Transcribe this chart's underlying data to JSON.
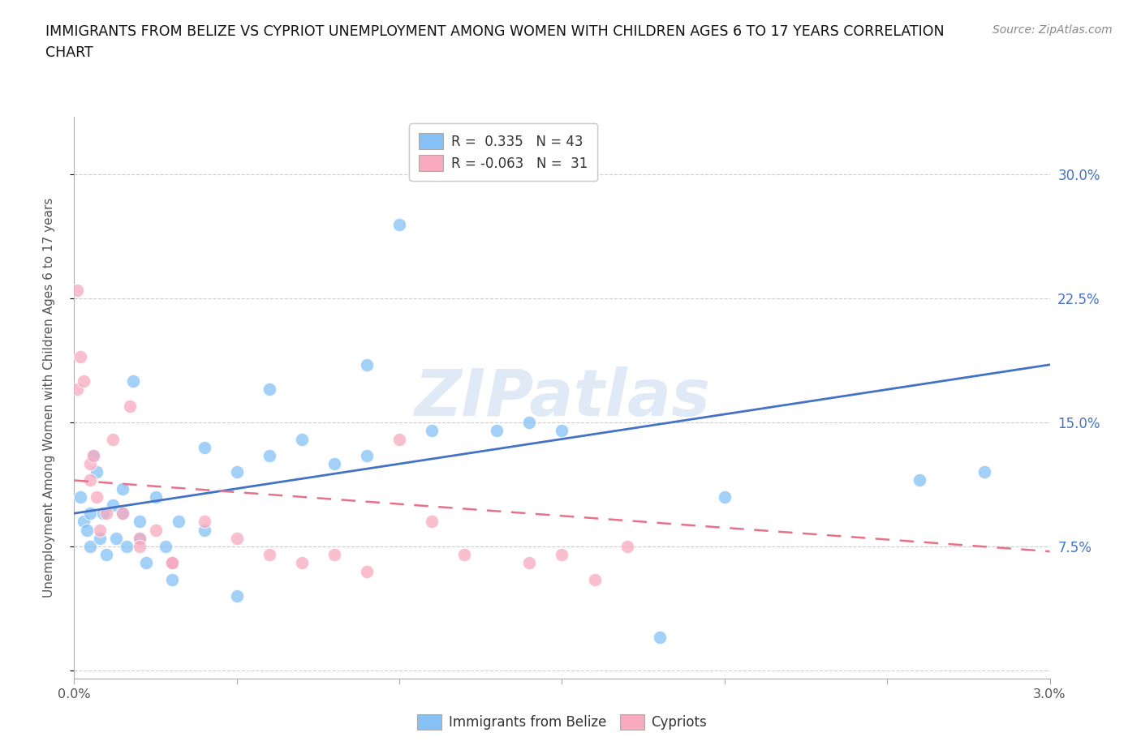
{
  "title_line1": "IMMIGRANTS FROM BELIZE VS CYPRIOT UNEMPLOYMENT AMONG WOMEN WITH CHILDREN AGES 6 TO 17 YEARS CORRELATION",
  "title_line2": "CHART",
  "source": "Source: ZipAtlas.com",
  "ylabel": "Unemployment Among Women with Children Ages 6 to 17 years",
  "xlim": [
    0.0,
    0.03
  ],
  "ylim": [
    -0.005,
    0.335
  ],
  "xticks": [
    0.0,
    0.005,
    0.01,
    0.015,
    0.02,
    0.025,
    0.03
  ],
  "xtick_labels_outer": [
    "0.0%",
    "",
    "",
    "",
    "",
    "",
    "3.0%"
  ],
  "yticks": [
    0.0,
    0.075,
    0.15,
    0.225,
    0.3
  ],
  "ytick_labels_right": [
    "",
    "7.5%",
    "15.0%",
    "22.5%",
    "30.0%"
  ],
  "belize_color": "#85C1F5",
  "cypriot_color": "#F9AABF",
  "belize_line_color": "#4472C4",
  "cypriot_line_color": "#E8718A",
  "watermark": "ZIPatlas",
  "belize_scatter_x": [
    0.0002,
    0.0003,
    0.0004,
    0.0005,
    0.0005,
    0.0006,
    0.0007,
    0.0008,
    0.0009,
    0.001,
    0.0012,
    0.0013,
    0.0015,
    0.0015,
    0.0016,
    0.0018,
    0.002,
    0.002,
    0.0022,
    0.0025,
    0.0028,
    0.003,
    0.003,
    0.0032,
    0.004,
    0.004,
    0.005,
    0.005,
    0.006,
    0.006,
    0.007,
    0.008,
    0.009,
    0.009,
    0.01,
    0.011,
    0.013,
    0.014,
    0.015,
    0.018,
    0.02,
    0.026,
    0.028
  ],
  "belize_scatter_y": [
    0.105,
    0.09,
    0.085,
    0.095,
    0.075,
    0.13,
    0.12,
    0.08,
    0.095,
    0.07,
    0.1,
    0.08,
    0.095,
    0.11,
    0.075,
    0.175,
    0.09,
    0.08,
    0.065,
    0.105,
    0.075,
    0.065,
    0.055,
    0.09,
    0.135,
    0.085,
    0.045,
    0.12,
    0.17,
    0.13,
    0.14,
    0.125,
    0.185,
    0.13,
    0.27,
    0.145,
    0.145,
    0.15,
    0.145,
    0.02,
    0.105,
    0.115,
    0.12
  ],
  "cypriot_scatter_x": [
    8e-05,
    0.0001,
    0.0002,
    0.0003,
    0.0005,
    0.0005,
    0.0006,
    0.0007,
    0.0008,
    0.001,
    0.0012,
    0.0015,
    0.0017,
    0.002,
    0.002,
    0.0025,
    0.003,
    0.003,
    0.004,
    0.005,
    0.006,
    0.007,
    0.008,
    0.009,
    0.01,
    0.011,
    0.012,
    0.014,
    0.015,
    0.016,
    0.017
  ],
  "cypriot_scatter_y": [
    0.23,
    0.17,
    0.19,
    0.175,
    0.125,
    0.115,
    0.13,
    0.105,
    0.085,
    0.095,
    0.14,
    0.095,
    0.16,
    0.08,
    0.075,
    0.085,
    0.065,
    0.065,
    0.09,
    0.08,
    0.07,
    0.065,
    0.07,
    0.06,
    0.14,
    0.09,
    0.07,
    0.065,
    0.07,
    0.055,
    0.075
  ],
  "belize_trend_x": [
    0.0,
    0.03
  ],
  "belize_trend_y": [
    0.095,
    0.185
  ],
  "cypriot_trend_x": [
    0.0,
    0.03
  ],
  "cypriot_trend_y": [
    0.115,
    0.072
  ],
  "grid_color": "#CCCCCC",
  "background_color": "#FFFFFF",
  "right_ytick_color": "#4472C4",
  "title_color": "#111111",
  "legend_label_belize": "Immigrants from Belize",
  "legend_label_cypriot": "Cypriots",
  "legend_r_belize": "R =  0.335   N = 43",
  "legend_r_cypriot": "R = -0.063   N =  31"
}
